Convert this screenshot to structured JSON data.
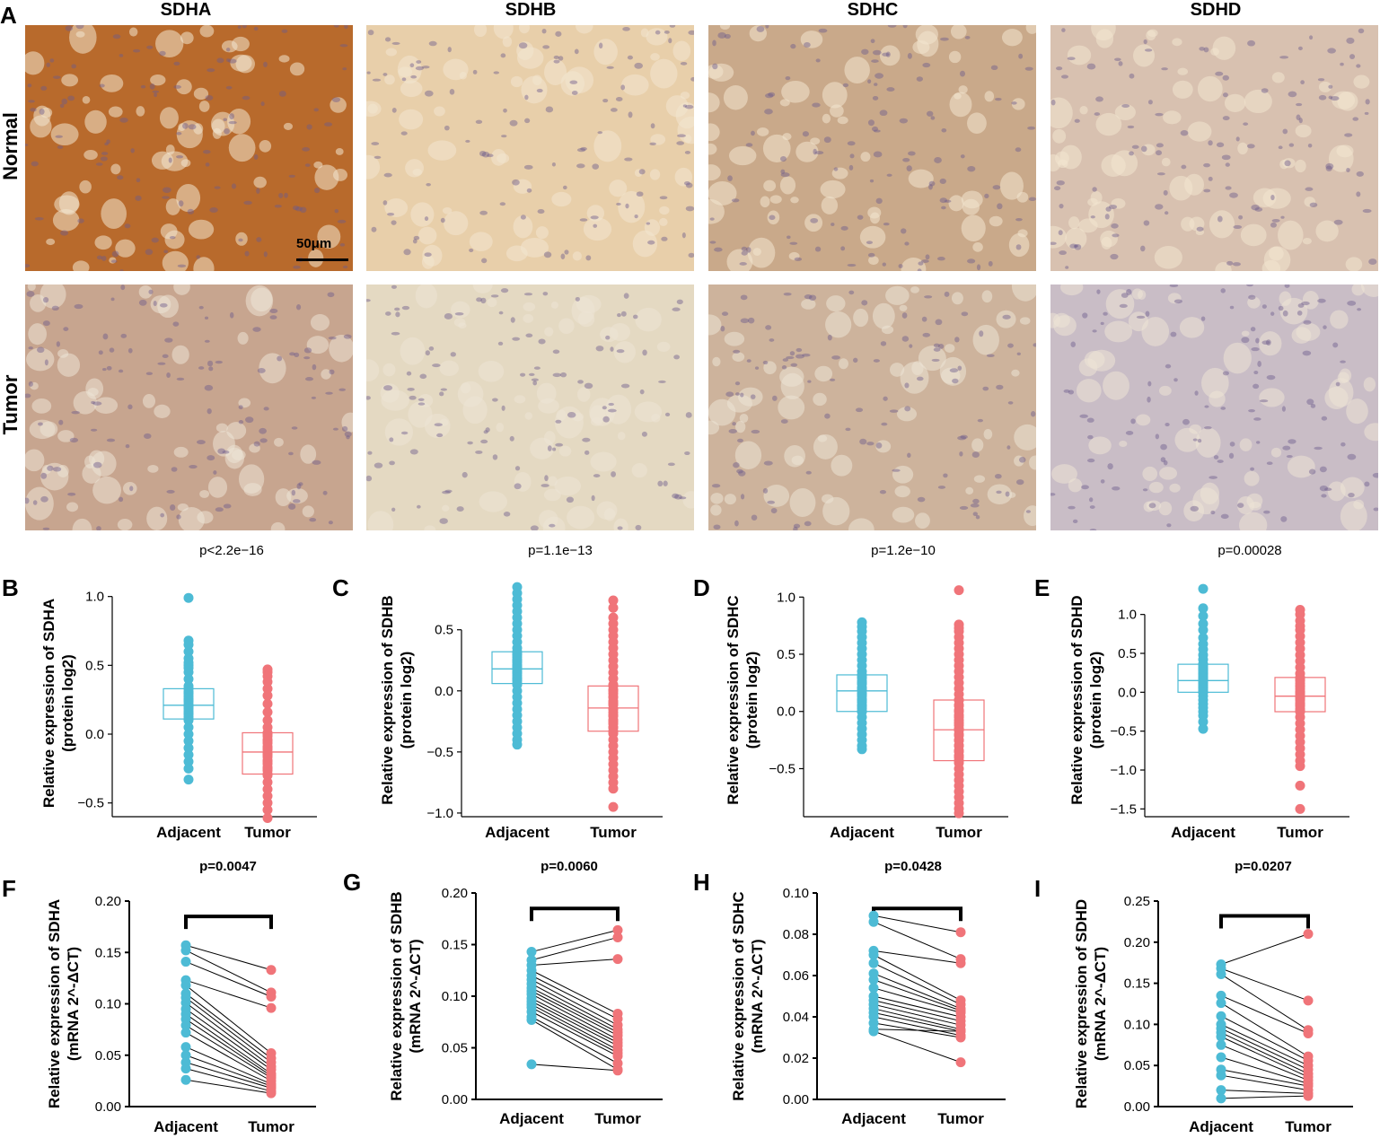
{
  "panel_letters": [
    "A",
    "B",
    "C",
    "D",
    "E",
    "F",
    "G",
    "H",
    "I"
  ],
  "column_titles": [
    "SDHA",
    "SDHB",
    "SDHC",
    "SDHD"
  ],
  "row_titles": [
    "Normal",
    "Tumor"
  ],
  "scale_bar": "50μm",
  "tile_colors": {
    "normal": [
      "#b86a2c",
      "#e8cfaa",
      "#c9a98a",
      "#d8c1b0"
    ],
    "tumor": [
      "#c7a58f",
      "#e4d9c2",
      "#cdb39c",
      "#c9bdc6"
    ]
  },
  "colors": {
    "adjacent": "#4dbbd5",
    "tumor": "#f07479",
    "line": "#000000"
  },
  "chart_data": [
    {
      "type": "box",
      "panel": "B",
      "title": "p<2.2e−16",
      "ylabel": [
        "Relative expression of SDHA",
        "(protein log2)"
      ],
      "categories": [
        "Adjacent",
        "Tumor"
      ],
      "ylim": [
        -0.6,
        1.05
      ],
      "yticks": [
        "1.0",
        "0.5",
        "0.0",
        "−0.5"
      ],
      "ytick_values": [
        1.0,
        0.5,
        0.0,
        -0.5
      ],
      "series": [
        {
          "name": "Adjacent",
          "median": 0.21,
          "q1": 0.11,
          "q3": 0.33,
          "whisker_low": -0.05,
          "whisker_high": 0.45,
          "points": [
            0.99,
            0.68,
            0.65,
            0.6,
            0.55,
            0.52,
            0.5,
            0.48,
            0.45,
            0.4,
            0.35,
            0.3,
            0.25,
            0.2,
            0.15,
            0.1,
            0.05,
            0.0,
            -0.05,
            -0.1,
            -0.15,
            -0.2,
            -0.25,
            -0.33
          ]
        },
        {
          "name": "Tumor",
          "median": -0.13,
          "q1": -0.29,
          "q3": 0.01,
          "whisker_low": -0.55,
          "whisker_high": 0.45,
          "points": [
            0.47,
            0.45,
            0.42,
            0.38,
            0.33,
            0.28,
            0.22,
            0.16,
            0.1,
            0.05,
            0.0,
            -0.05,
            -0.1,
            -0.15,
            -0.2,
            -0.25,
            -0.3,
            -0.35,
            -0.4,
            -0.45,
            -0.5,
            -0.55,
            -0.61
          ]
        }
      ]
    },
    {
      "type": "box",
      "panel": "C",
      "title": "p=1.1e−13",
      "ylabel": [
        "Relative expression of SDHB",
        "(protein log2)"
      ],
      "categories": [
        "Adjacent",
        "Tumor"
      ],
      "ylim": [
        -1.03,
        0.88
      ],
      "yticks": [
        "0.5",
        "0.0",
        "−0.5",
        "−1.0"
      ],
      "ytick_values": [
        0.5,
        0.0,
        -0.5,
        -1.0
      ],
      "series": [
        {
          "name": "Adjacent",
          "median": 0.18,
          "q1": 0.06,
          "q3": 0.32,
          "whisker_low": -0.3,
          "whisker_high": 0.7,
          "points": [
            0.85,
            0.8,
            0.75,
            0.7,
            0.65,
            0.6,
            0.55,
            0.5,
            0.45,
            0.4,
            0.35,
            0.3,
            0.25,
            0.2,
            0.15,
            0.1,
            0.05,
            0.0,
            -0.05,
            -0.1,
            -0.15,
            -0.2,
            -0.25,
            -0.3,
            -0.35,
            -0.4,
            -0.44
          ]
        },
        {
          "name": "Tumor",
          "median": -0.14,
          "q1": -0.33,
          "q3": 0.04,
          "whisker_low": -0.6,
          "whisker_high": 0.5,
          "points": [
            0.74,
            0.68,
            0.6,
            0.55,
            0.5,
            0.45,
            0.4,
            0.35,
            0.3,
            0.25,
            0.2,
            0.15,
            0.1,
            0.05,
            0.0,
            -0.05,
            -0.1,
            -0.15,
            -0.2,
            -0.25,
            -0.3,
            -0.35,
            -0.4,
            -0.45,
            -0.5,
            -0.55,
            -0.6,
            -0.65,
            -0.7,
            -0.75,
            -0.8,
            -0.95
          ]
        }
      ]
    },
    {
      "type": "box",
      "panel": "D",
      "title": "p=1.2e−10",
      "ylabel": [
        "Relative expression of SDHC",
        "(protein log2)"
      ],
      "categories": [
        "Adjacent",
        "Tumor"
      ],
      "ylim": [
        -0.92,
        1.12
      ],
      "yticks": [
        "1.0",
        "0.5",
        "0.0",
        "−0.5"
      ],
      "ytick_values": [
        1.0,
        0.5,
        0.0,
        -0.5
      ],
      "series": [
        {
          "name": "Adjacent",
          "median": 0.18,
          "q1": 0.0,
          "q3": 0.32,
          "whisker_low": -0.32,
          "whisker_high": 0.78,
          "points": [
            0.78,
            0.74,
            0.7,
            0.65,
            0.6,
            0.55,
            0.5,
            0.45,
            0.4,
            0.35,
            0.3,
            0.25,
            0.2,
            0.15,
            0.1,
            0.05,
            0.0,
            -0.05,
            -0.1,
            -0.15,
            -0.2,
            -0.25,
            -0.3,
            -0.33
          ]
        },
        {
          "name": "Tumor",
          "median": -0.16,
          "q1": -0.43,
          "q3": 0.1,
          "whisker_low": -0.88,
          "whisker_high": 0.7,
          "points": [
            1.06,
            0.76,
            0.73,
            0.7,
            0.65,
            0.6,
            0.55,
            0.5,
            0.45,
            0.4,
            0.35,
            0.3,
            0.25,
            0.2,
            0.15,
            0.1,
            0.05,
            0.0,
            -0.05,
            -0.1,
            -0.15,
            -0.2,
            -0.25,
            -0.3,
            -0.35,
            -0.4,
            -0.45,
            -0.5,
            -0.55,
            -0.6,
            -0.65,
            -0.7,
            -0.75,
            -0.8,
            -0.85,
            -0.89
          ]
        }
      ]
    },
    {
      "type": "box",
      "panel": "E",
      "title": "p=0.00028",
      "ylabel": [
        "Relative expression of SDHD",
        "(protein log2)"
      ],
      "categories": [
        "Adjacent",
        "Tumor"
      ],
      "ylim": [
        -1.6,
        1.4
      ],
      "yticks": [
        "1.0",
        "0.5",
        "0.0",
        "−0.5",
        "−1.0",
        "−1.5"
      ],
      "ytick_values": [
        1.0,
        0.5,
        0.0,
        -0.5,
        -1.0,
        -1.5
      ],
      "series": [
        {
          "name": "Adjacent",
          "median": 0.15,
          "q1": 0.0,
          "q3": 0.36,
          "whisker_low": -0.25,
          "whisker_high": 0.7,
          "points": [
            1.33,
            1.08,
            0.98,
            0.88,
            0.8,
            0.7,
            0.62,
            0.55,
            0.48,
            0.42,
            0.36,
            0.3,
            0.24,
            0.18,
            0.12,
            0.06,
            0.0,
            -0.05,
            -0.1,
            -0.15,
            -0.2,
            -0.25,
            -0.3,
            -0.38,
            -0.47
          ]
        },
        {
          "name": "Tumor",
          "median": -0.05,
          "q1": -0.25,
          "q3": 0.19,
          "whisker_low": -0.7,
          "whisker_high": 0.6,
          "points": [
            1.06,
            1.0,
            0.92,
            0.85,
            0.8,
            0.72,
            0.64,
            0.56,
            0.48,
            0.4,
            0.32,
            0.24,
            0.16,
            0.08,
            0.0,
            -0.08,
            -0.16,
            -0.24,
            -0.32,
            -0.4,
            -0.48,
            -0.56,
            -0.64,
            -0.72,
            -0.8,
            -0.88,
            -0.95,
            -1.2,
            -1.5
          ]
        }
      ]
    },
    {
      "type": "paired",
      "panel": "F",
      "title": "p=0.0047",
      "ylabel": [
        "Relative expression of SDHA",
        "(mRNA 2^-ΔCT)"
      ],
      "categories": [
        "Adjacent",
        "Tumor"
      ],
      "ylim": [
        0,
        0.2
      ],
      "yticks": [
        "0.20",
        "0.15",
        "0.10",
        "0.05",
        "0.00"
      ],
      "ytick_values": [
        0.2,
        0.15,
        0.1,
        0.05,
        0.0
      ],
      "bracket": 0.185,
      "pairs": [
        [
          0.157,
          0.133
        ],
        [
          0.152,
          0.111
        ],
        [
          0.141,
          0.107
        ],
        [
          0.123,
          0.096
        ],
        [
          0.118,
          0.052
        ],
        [
          0.11,
          0.047
        ],
        [
          0.106,
          0.043
        ],
        [
          0.101,
          0.039
        ],
        [
          0.095,
          0.036
        ],
        [
          0.09,
          0.032
        ],
        [
          0.085,
          0.03
        ],
        [
          0.079,
          0.028
        ],
        [
          0.072,
          0.025
        ],
        [
          0.058,
          0.022
        ],
        [
          0.05,
          0.02
        ],
        [
          0.043,
          0.018
        ],
        [
          0.037,
          0.015
        ],
        [
          0.026,
          0.013
        ]
      ]
    },
    {
      "type": "paired",
      "panel": "G",
      "title": "p=0.0060",
      "ylabel": [
        "Relative expression of SDHB",
        "(mRNA 2^-ΔCT)"
      ],
      "categories": [
        "Adjacent",
        "Tumor"
      ],
      "ylim": [
        0,
        0.2
      ],
      "yticks": [
        "0.20",
        "0.15",
        "0.10",
        "0.05",
        "0.00"
      ],
      "ytick_values": [
        0.2,
        0.15,
        0.1,
        0.05,
        0.0
      ],
      "bracket": 0.185,
      "pairs": [
        [
          0.143,
          0.164
        ],
        [
          0.135,
          0.157
        ],
        [
          0.13,
          0.136
        ],
        [
          0.125,
          0.083
        ],
        [
          0.12,
          0.078
        ],
        [
          0.116,
          0.072
        ],
        [
          0.112,
          0.068
        ],
        [
          0.108,
          0.065
        ],
        [
          0.105,
          0.062
        ],
        [
          0.102,
          0.058
        ],
        [
          0.098,
          0.055
        ],
        [
          0.095,
          0.052
        ],
        [
          0.092,
          0.048
        ],
        [
          0.089,
          0.045
        ],
        [
          0.085,
          0.042
        ],
        [
          0.08,
          0.035
        ],
        [
          0.077,
          0.029
        ],
        [
          0.034,
          0.028
        ]
      ]
    },
    {
      "type": "paired",
      "panel": "H",
      "title": "p=0.0428",
      "ylabel": [
        "Relative expression of SDHC",
        "(mRNA 2^-ΔCT)"
      ],
      "categories": [
        "Adjacent",
        "Tumor"
      ],
      "ylim": [
        0,
        0.1
      ],
      "yticks": [
        "0.10",
        "0.08",
        "0.06",
        "0.04",
        "0.02",
        "0.00"
      ],
      "ytick_values": [
        0.1,
        0.08,
        0.06,
        0.04,
        0.02,
        0.0
      ],
      "bracket": 0.0925,
      "pairs": [
        [
          0.089,
          0.081
        ],
        [
          0.086,
          0.068
        ],
        [
          0.072,
          0.066
        ],
        [
          0.07,
          0.048
        ],
        [
          0.066,
          0.046
        ],
        [
          0.061,
          0.044
        ],
        [
          0.058,
          0.043
        ],
        [
          0.054,
          0.042
        ],
        [
          0.05,
          0.04
        ],
        [
          0.048,
          0.038
        ],
        [
          0.046,
          0.036
        ],
        [
          0.044,
          0.034
        ],
        [
          0.042,
          0.033
        ],
        [
          0.04,
          0.031
        ],
        [
          0.037,
          0.03
        ],
        [
          0.034,
          0.033
        ],
        [
          0.033,
          0.018
        ]
      ]
    },
    {
      "type": "paired",
      "panel": "I",
      "title": "p=0.0207",
      "ylabel": [
        "Relative expression of SDHD",
        "(mRNA 2^-ΔCT)"
      ],
      "categories": [
        "Adjacent",
        "Tumor"
      ],
      "ylim": [
        0,
        0.25
      ],
      "yticks": [
        "0.25",
        "0.20",
        "0.15",
        "0.10",
        "0.05",
        "0.00"
      ],
      "ytick_values": [
        0.25,
        0.2,
        0.15,
        0.1,
        0.05,
        0.0
      ],
      "bracket": 0.232,
      "pairs": [
        [
          0.173,
          0.21
        ],
        [
          0.168,
          0.129
        ],
        [
          0.161,
          0.093
        ],
        [
          0.135,
          0.089
        ],
        [
          0.126,
          0.061
        ],
        [
          0.11,
          0.056
        ],
        [
          0.1,
          0.05
        ],
        [
          0.095,
          0.045
        ],
        [
          0.09,
          0.04
        ],
        [
          0.085,
          0.036
        ],
        [
          0.075,
          0.032
        ],
        [
          0.06,
          0.028
        ],
        [
          0.045,
          0.025
        ],
        [
          0.038,
          0.02
        ],
        [
          0.02,
          0.016
        ],
        [
          0.01,
          0.013
        ]
      ]
    }
  ]
}
